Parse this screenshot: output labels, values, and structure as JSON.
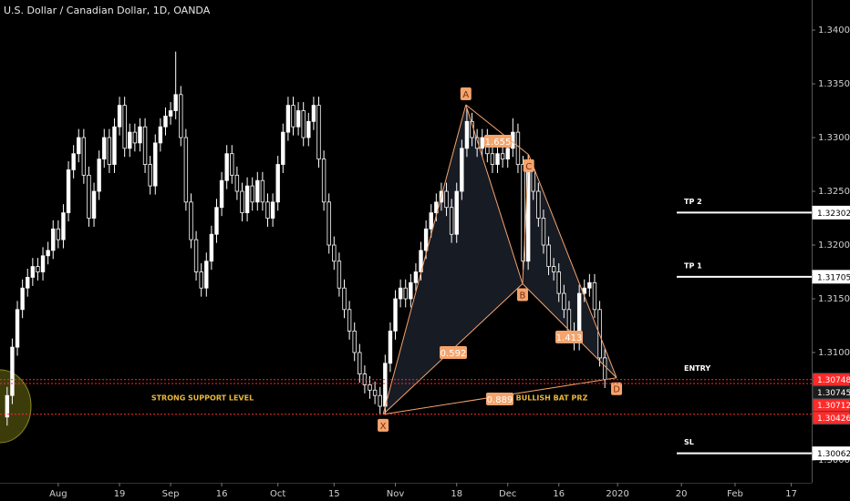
{
  "chart_data": {
    "type": "candlestick",
    "title": "U.S. Dollar / Canadian Dollar, 1D, OANDA",
    "up_color": "#ffffff",
    "down_color": "#000000",
    "wick_color": "#ffffff",
    "open": [
      1.304,
      1.306,
      1.3105,
      1.314,
      1.316,
      1.317,
      1.318,
      1.3175,
      1.319,
      1.3195,
      1.3215,
      1.3205,
      1.323,
      1.327,
      1.3285,
      1.33,
      1.3265,
      1.3225,
      1.325,
      1.328,
      1.33,
      1.3275,
      1.331,
      1.333,
      1.329,
      1.3305,
      1.3295,
      1.331,
      1.3275,
      1.3255,
      1.3295,
      1.331,
      1.332,
      1.3325,
      1.334,
      1.33,
      1.324,
      1.3205,
      1.3175,
      1.316,
      1.3185,
      1.321,
      1.3235,
      1.326,
      1.3285,
      1.3265,
      1.325,
      1.323,
      1.3255,
      1.324,
      1.326,
      1.324,
      1.3225,
      1.324,
      1.3275,
      1.3305,
      1.333,
      1.331,
      1.3325,
      1.33,
      1.3315,
      1.333,
      1.328,
      1.324,
      1.32,
      1.3185,
      1.316,
      1.314,
      1.312,
      1.31,
      1.308,
      1.307,
      1.3065,
      1.306,
      1.305,
      1.309,
      1.312,
      1.315,
      1.316,
      1.315,
      1.3165,
      1.3175,
      1.3195,
      1.3215,
      1.323,
      1.324,
      1.325,
      1.3235,
      1.321,
      1.325,
      1.329,
      1.3315,
      1.33,
      1.329,
      1.33,
      1.3285,
      1.3275,
      1.3285,
      1.328,
      1.329,
      1.3305,
      1.3275,
      1.3185,
      1.327,
      1.325,
      1.3225,
      1.32,
      1.318,
      1.3175,
      1.3155,
      1.314,
      1.312,
      1.311,
      1.3155,
      1.316,
      1.3165,
      1.314,
      1.3095
    ],
    "high": [
      1.3068,
      1.3113,
      1.3148,
      1.3168,
      1.3178,
      1.3188,
      1.3188,
      1.3198,
      1.3203,
      1.3223,
      1.3223,
      1.3238,
      1.3278,
      1.3293,
      1.3308,
      1.3308,
      1.3273,
      1.3258,
      1.3288,
      1.3308,
      1.3308,
      1.3318,
      1.3338,
      1.3338,
      1.3313,
      1.3313,
      1.3318,
      1.3318,
      1.3283,
      1.3303,
      1.3318,
      1.3328,
      1.3333,
      1.338,
      1.3348,
      1.3308,
      1.3248,
      1.3213,
      1.3183,
      1.3193,
      1.3218,
      1.3243,
      1.3268,
      1.3293,
      1.3293,
      1.3273,
      1.3258,
      1.3263,
      1.3263,
      1.3268,
      1.3268,
      1.3248,
      1.3248,
      1.3283,
      1.3313,
      1.3338,
      1.3338,
      1.3333,
      1.3333,
      1.3323,
      1.3338,
      1.3338,
      1.3288,
      1.3248,
      1.3208,
      1.3193,
      1.3168,
      1.3148,
      1.3128,
      1.3108,
      1.3088,
      1.3078,
      1.3073,
      1.3068,
      1.3098,
      1.3128,
      1.3158,
      1.3168,
      1.3168,
      1.3173,
      1.3183,
      1.3203,
      1.3223,
      1.3238,
      1.3248,
      1.3258,
      1.3258,
      1.3243,
      1.3258,
      1.3298,
      1.3328,
      1.3323,
      1.3308,
      1.3308,
      1.3308,
      1.3293,
      1.3293,
      1.3293,
      1.3298,
      1.3318,
      1.3313,
      1.3283,
      1.3284,
      1.3278,
      1.3258,
      1.3233,
      1.3208,
      1.3188,
      1.3183,
      1.3163,
      1.3148,
      1.3128,
      1.3163,
      1.3168,
      1.3173,
      1.3173,
      1.3148,
      1.3103
    ],
    "low": [
      1.3032,
      1.3052,
      1.3097,
      1.3132,
      1.3152,
      1.3162,
      1.3167,
      1.3167,
      1.3182,
      1.3187,
      1.3197,
      1.3197,
      1.3222,
      1.3262,
      1.3277,
      1.3257,
      1.3217,
      1.3217,
      1.3242,
      1.3272,
      1.3267,
      1.3267,
      1.3302,
      1.3282,
      1.3282,
      1.3287,
      1.3287,
      1.3267,
      1.3247,
      1.3247,
      1.3287,
      1.3302,
      1.3312,
      1.3317,
      1.3292,
      1.3232,
      1.3197,
      1.3167,
      1.3152,
      1.3152,
      1.3177,
      1.3202,
      1.3227,
      1.3252,
      1.3257,
      1.3242,
      1.3222,
      1.3222,
      1.3232,
      1.3232,
      1.3232,
      1.3217,
      1.3217,
      1.3232,
      1.3267,
      1.3297,
      1.3302,
      1.3302,
      1.3292,
      1.3292,
      1.3307,
      1.3272,
      1.3232,
      1.3192,
      1.3177,
      1.3152,
      1.3132,
      1.3112,
      1.3092,
      1.3072,
      1.3062,
      1.3057,
      1.3052,
      1.3042,
      1.3042,
      1.3082,
      1.3112,
      1.3142,
      1.3142,
      1.3142,
      1.3157,
      1.3167,
      1.3187,
      1.3207,
      1.3222,
      1.3232,
      1.3227,
      1.3202,
      1.3202,
      1.3242,
      1.3282,
      1.3292,
      1.3282,
      1.3282,
      1.3277,
      1.3267,
      1.3267,
      1.3272,
      1.3272,
      1.3282,
      1.3267,
      1.3177,
      1.3177,
      1.3242,
      1.3217,
      1.3192,
      1.3172,
      1.3167,
      1.3147,
      1.3132,
      1.3112,
      1.3102,
      1.3102,
      1.3147,
      1.3152,
      1.3132,
      1.3087,
      1.3067
    ],
    "close": [
      1.306,
      1.3105,
      1.314,
      1.316,
      1.317,
      1.318,
      1.3175,
      1.319,
      1.3195,
      1.3215,
      1.3205,
      1.323,
      1.327,
      1.3285,
      1.33,
      1.3265,
      1.3225,
      1.325,
      1.328,
      1.33,
      1.3275,
      1.331,
      1.333,
      1.329,
      1.3305,
      1.3295,
      1.331,
      1.3275,
      1.3255,
      1.3295,
      1.331,
      1.332,
      1.3325,
      1.334,
      1.33,
      1.324,
      1.3205,
      1.3175,
      1.316,
      1.3185,
      1.321,
      1.3235,
      1.326,
      1.3285,
      1.3265,
      1.325,
      1.323,
      1.3255,
      1.324,
      1.326,
      1.324,
      1.3225,
      1.324,
      1.3275,
      1.3305,
      1.333,
      1.331,
      1.3325,
      1.33,
      1.3315,
      1.333,
      1.328,
      1.324,
      1.32,
      1.3185,
      1.316,
      1.314,
      1.312,
      1.31,
      1.308,
      1.307,
      1.3065,
      1.306,
      1.305,
      1.309,
      1.312,
      1.315,
      1.316,
      1.315,
      1.3165,
      1.3175,
      1.3195,
      1.3215,
      1.323,
      1.324,
      1.325,
      1.3235,
      1.321,
      1.325,
      1.329,
      1.3315,
      1.33,
      1.329,
      1.33,
      1.3285,
      1.3275,
      1.3285,
      1.328,
      1.329,
      1.3305,
      1.3275,
      1.3185,
      1.327,
      1.325,
      1.3225,
      1.32,
      1.318,
      1.3175,
      1.3155,
      1.314,
      1.312,
      1.311,
      1.3155,
      1.316,
      1.3165,
      1.314,
      1.3095,
      1.3075
    ],
    "ylim": [
      1.29788,
      1.3428
    ],
    "yticks": [
      {
        "value": 1.34,
        "label": "1.34000"
      },
      {
        "value": 1.335,
        "label": "1.33500"
      },
      {
        "value": 1.33,
        "label": "1.33000"
      },
      {
        "value": 1.325,
        "label": "1.32500"
      },
      {
        "value": 1.32,
        "label": "1.32000"
      },
      {
        "value": 1.315,
        "label": "1.31500"
      },
      {
        "value": 1.31,
        "label": "1.31000"
      },
      {
        "value": 1.3,
        "label": "1.30000"
      }
    ],
    "xlim": [
      -1.4,
      157.5
    ],
    "xticks": [
      {
        "value": 10,
        "label": "Aug"
      },
      {
        "value": 22,
        "label": "19"
      },
      {
        "value": 32,
        "label": "Sep"
      },
      {
        "value": 42,
        "label": "16"
      },
      {
        "value": 53,
        "label": "Oct"
      },
      {
        "value": 64,
        "label": "15"
      },
      {
        "value": 76,
        "label": "Nov"
      },
      {
        "value": 88,
        "label": "18"
      },
      {
        "value": 98,
        "label": "Dec"
      },
      {
        "value": 108,
        "label": "16"
      },
      {
        "value": 119.5,
        "label": "2020"
      },
      {
        "value": 132,
        "label": "20"
      },
      {
        "value": 142.5,
        "label": "Feb"
      },
      {
        "value": 153.5,
        "label": "17"
      }
    ],
    "pattern": {
      "color": "#f5a46c",
      "points": [
        {
          "label": "X",
          "x": 73.6,
          "y": 1.30425
        },
        {
          "label": "A",
          "x": 89.8,
          "y": 1.33305
        },
        {
          "label": "B",
          "x": 100.9,
          "y": 1.3164
        },
        {
          "label": "C",
          "x": 102.1,
          "y": 1.3284
        },
        {
          "label": "D",
          "x": 119.3,
          "y": 1.30765
        }
      ],
      "ratios": [
        "0.592",
        "1.655",
        "1.413",
        "0.889"
      ]
    },
    "annotations": [
      "STRONG SUPPORT LEVEL",
      "BULLISH BAT PRZ"
    ],
    "levels": [
      {
        "name": "TP 2",
        "value": 1.32302,
        "color": "#ffffff",
        "line": "segment"
      },
      {
        "name": "TP 1",
        "value": 1.31705,
        "color": "#ffffff",
        "line": "segment"
      },
      {
        "name": "ENTRY",
        "value": 1.30748,
        "color": "#ff2a2a",
        "line": "dotted"
      },
      {
        "value": 1.30745,
        "color": "#1c1c1c",
        "line": "none"
      },
      {
        "value": 1.30712,
        "color": "#ff2a2a",
        "line": "dotted"
      },
      {
        "value": 1.30426,
        "color": "#ff2a2a",
        "line": "dotted"
      },
      {
        "name": "SL",
        "value": 1.30062,
        "color": "#ffffff",
        "line": "segment"
      }
    ]
  }
}
